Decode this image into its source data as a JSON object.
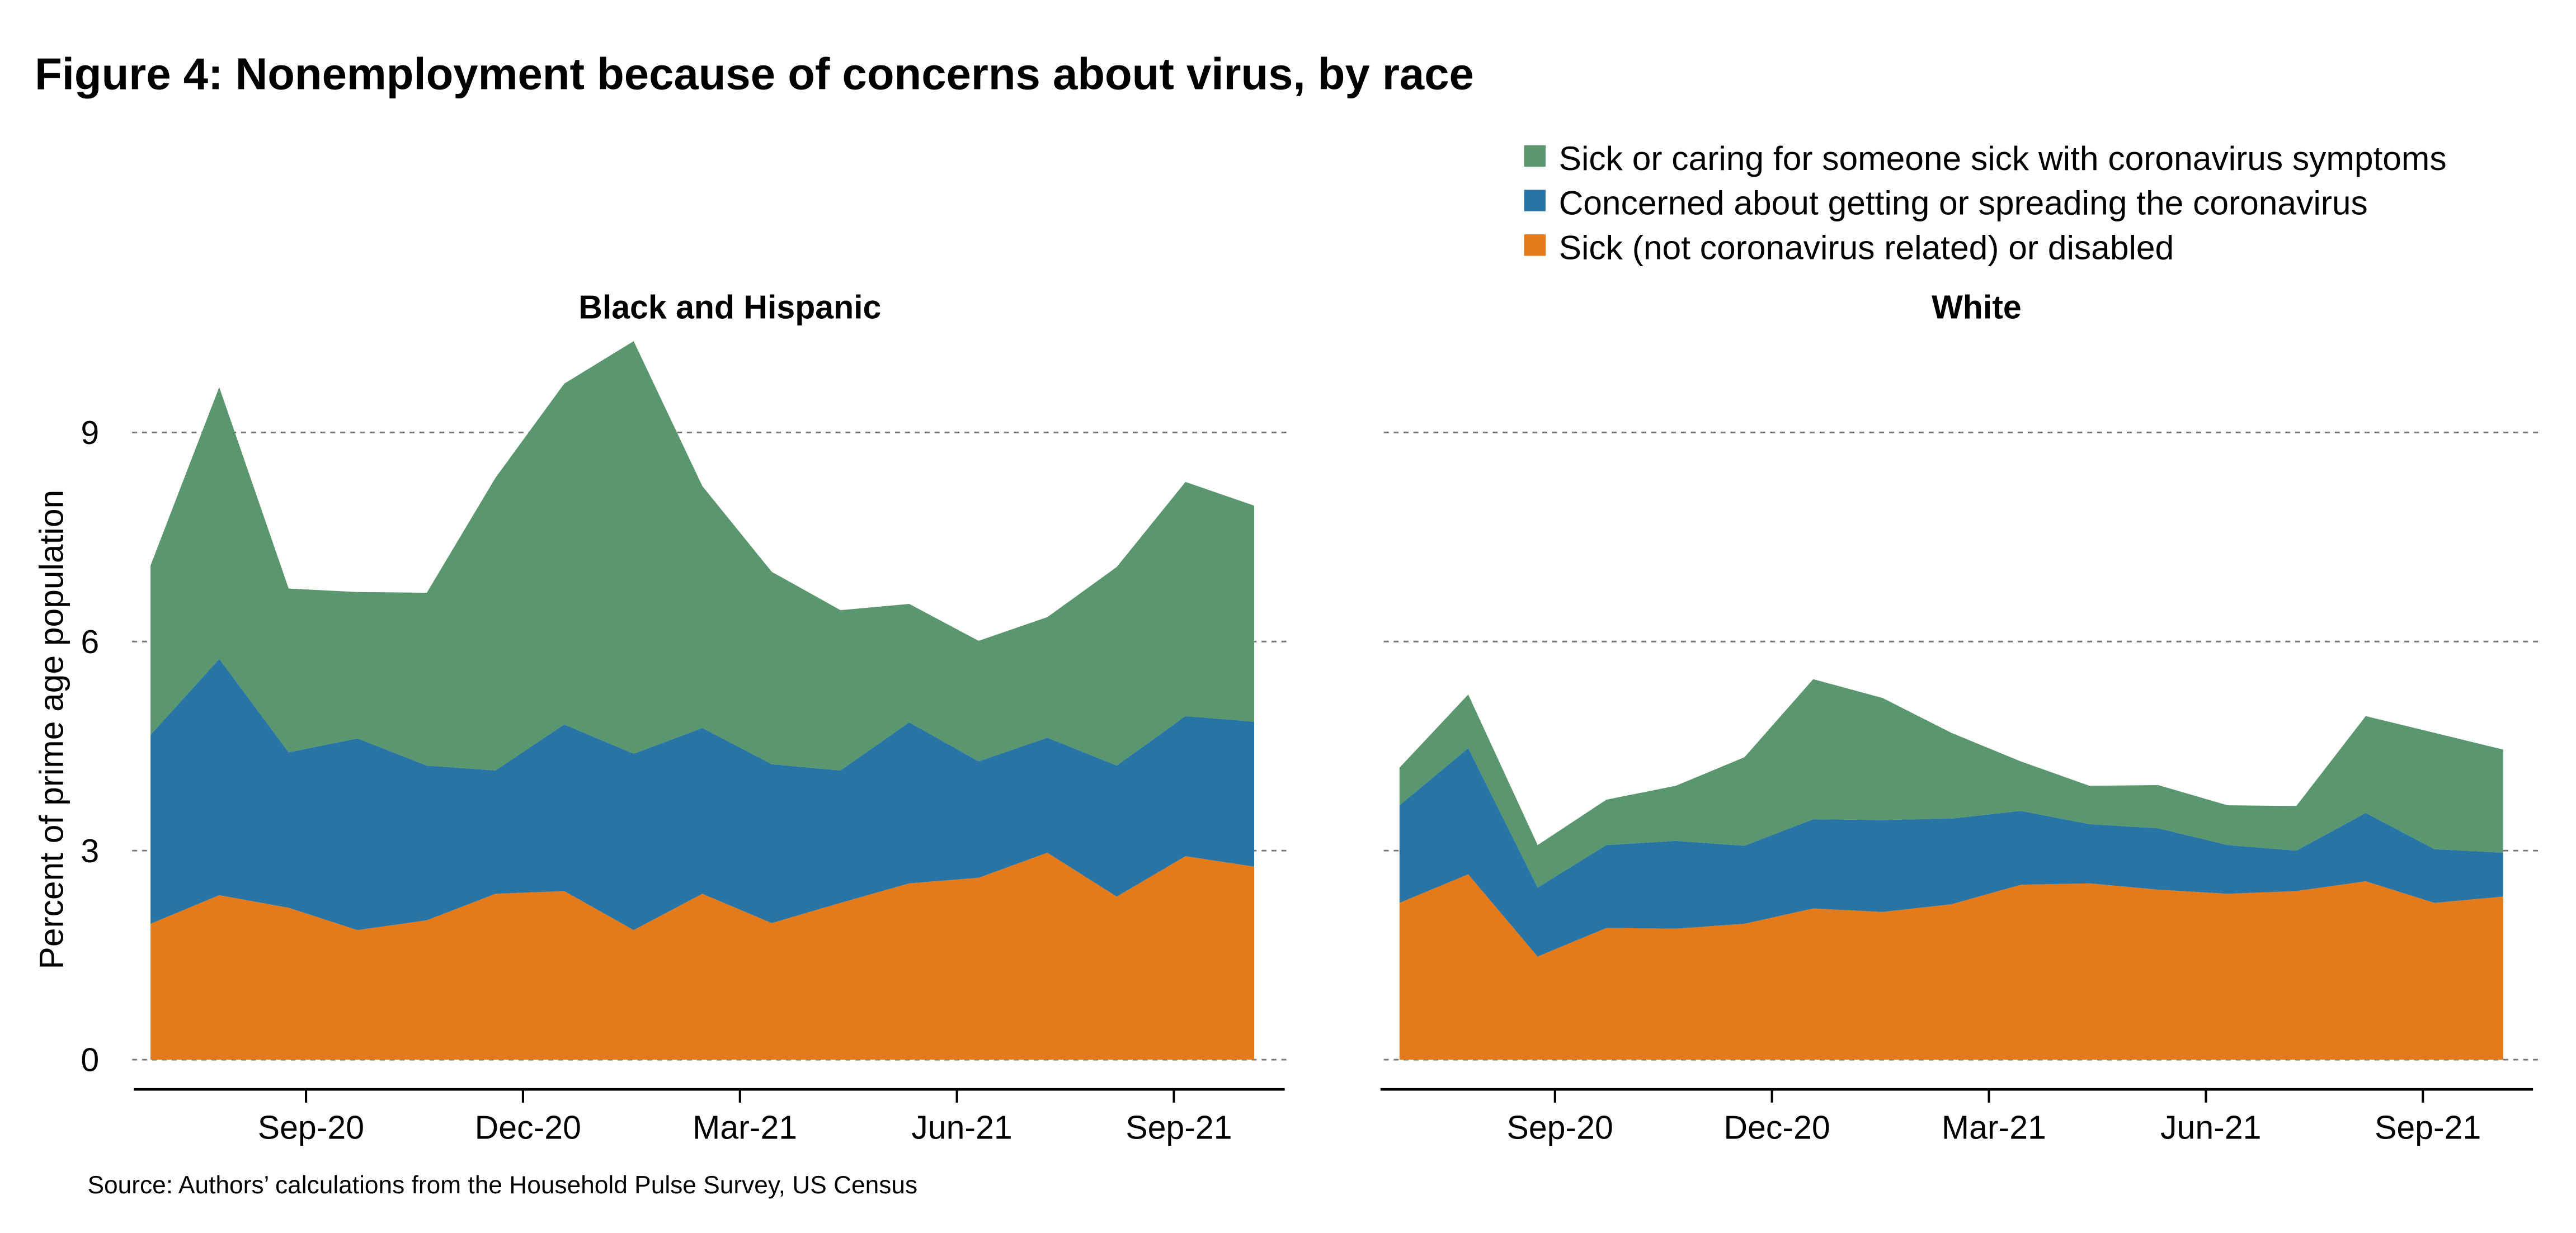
{
  "chart_data": [
    {
      "type": "area",
      "stacked": true,
      "title": "Black and Hispanic",
      "ylabel": "Percent of prime age population",
      "ylim": [
        0,
        10.5
      ],
      "yticks": [
        0,
        3,
        6,
        9
      ],
      "xticks": [
        {
          "x": 8,
          "label": "Sep-20"
        },
        {
          "x": 11,
          "label": "Dec-20"
        },
        {
          "x": 14,
          "label": "Mar-21"
        },
        {
          "x": 17,
          "label": "Jun-21"
        },
        {
          "x": 20,
          "label": "Sep-21"
        }
      ],
      "x_unit": "months since Jan 2020",
      "x": [
        5.85,
        6.8,
        7.76,
        8.71,
        9.67,
        10.62,
        11.57,
        12.53,
        13.48,
        14.44,
        15.39,
        16.34,
        17.3,
        18.25,
        19.21,
        20.16,
        21.11
      ],
      "series": [
        {
          "name": "Sick (not coronavirus related) or disabled",
          "color": "#E47A1A",
          "values": [
            1.95,
            2.36,
            2.18,
            1.86,
            2.0,
            2.38,
            2.42,
            1.86,
            2.38,
            1.96,
            2.25,
            2.53,
            2.61,
            2.97,
            2.34,
            2.92,
            2.77
          ]
        },
        {
          "name": "Concerned about getting or spreading the coronavirus",
          "color": "#2774A5",
          "values": [
            2.71,
            3.39,
            2.23,
            2.75,
            2.22,
            1.77,
            2.39,
            2.53,
            2.38,
            2.28,
            1.9,
            2.31,
            1.67,
            1.65,
            1.88,
            2.01,
            2.08
          ]
        },
        {
          "name": "Sick or caring for someone sick with coronavirus symptoms",
          "color": "#5A966E",
          "values": [
            2.43,
            3.9,
            2.35,
            2.1,
            2.48,
            4.2,
            4.89,
            5.92,
            3.47,
            2.76,
            2.3,
            1.7,
            1.73,
            1.73,
            2.85,
            3.36,
            3.1
          ]
        }
      ]
    },
    {
      "type": "area",
      "stacked": true,
      "title": "White",
      "ylim": [
        0,
        10.5
      ],
      "yticks": [
        0,
        3,
        6,
        9
      ],
      "xticks": [
        {
          "x": 8,
          "label": "Sep-20"
        },
        {
          "x": 11,
          "label": "Dec-20"
        },
        {
          "x": 14,
          "label": "Mar-21"
        },
        {
          "x": 17,
          "label": "Jun-21"
        },
        {
          "x": 20,
          "label": "Sep-21"
        }
      ],
      "x_unit": "months since Jan 2020",
      "x": [
        5.85,
        6.8,
        7.76,
        8.71,
        9.67,
        10.62,
        11.57,
        12.53,
        13.48,
        14.44,
        15.39,
        16.34,
        17.3,
        18.25,
        19.21,
        20.16,
        21.11
      ],
      "series": [
        {
          "name": "Sick (not coronavirus related) or disabled",
          "color": "#E47A1A",
          "values": [
            2.25,
            2.66,
            1.48,
            1.89,
            1.88,
            1.95,
            2.17,
            2.12,
            2.23,
            2.51,
            2.53,
            2.44,
            2.38,
            2.42,
            2.56,
            2.25,
            2.34
          ]
        },
        {
          "name": "Concerned about getting or spreading the coronavirus",
          "color": "#2774A5",
          "values": [
            1.4,
            1.81,
            0.99,
            1.19,
            1.26,
            1.12,
            1.28,
            1.32,
            1.23,
            1.06,
            0.85,
            0.88,
            0.7,
            0.58,
            0.98,
            0.77,
            0.63
          ]
        },
        {
          "name": "Sick or caring for someone sick with coronavirus symptoms",
          "color": "#5A966E",
          "values": [
            0.54,
            0.77,
            0.61,
            0.65,
            0.79,
            1.27,
            2.01,
            1.75,
            1.23,
            0.71,
            0.55,
            0.62,
            0.57,
            0.64,
            1.39,
            1.67,
            1.48
          ]
        }
      ]
    }
  ],
  "figure_title": "Figure 4: Nonemployment because of concerns about virus, by race",
  "legend": [
    {
      "label": "Sick or caring for someone sick with coronavirus symptoms",
      "color": "#5A966E"
    },
    {
      "label": "Concerned about getting or spreading the coronavirus",
      "color": "#2774A5"
    },
    {
      "label": "Sick (not coronavirus related) or disabled",
      "color": "#E47A1A"
    }
  ],
  "source": "Source: Authors’ calculations from the Household Pulse Survey, US Census"
}
